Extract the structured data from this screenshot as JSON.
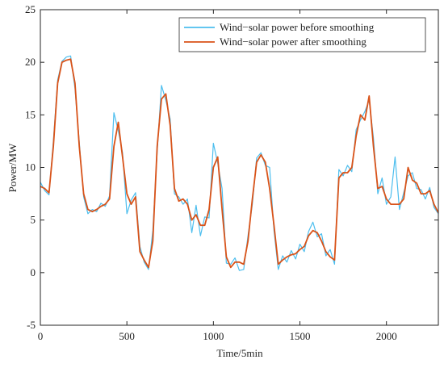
{
  "chart_data": {
    "type": "line",
    "xlabel": "Time/5min",
    "ylabel": "Power/MW",
    "x": [
      0,
      25,
      50,
      75,
      100,
      125,
      150,
      175,
      200,
      225,
      250,
      275,
      300,
      325,
      350,
      375,
      400,
      425,
      450,
      475,
      500,
      525,
      550,
      575,
      600,
      625,
      650,
      675,
      700,
      725,
      750,
      775,
      800,
      825,
      850,
      875,
      900,
      925,
      950,
      975,
      1000,
      1025,
      1050,
      1075,
      1100,
      1125,
      1150,
      1175,
      1200,
      1225,
      1250,
      1275,
      1300,
      1325,
      1350,
      1375,
      1400,
      1425,
      1450,
      1475,
      1500,
      1525,
      1550,
      1575,
      1600,
      1625,
      1650,
      1675,
      1700,
      1725,
      1750,
      1775,
      1800,
      1825,
      1850,
      1875,
      1900,
      1925,
      1950,
      1975,
      2000,
      2025,
      2050,
      2075,
      2100,
      2125,
      2150,
      2175,
      2200,
      2225,
      2250,
      2275,
      2300
    ],
    "series": [
      {
        "name": "Wind−solar power before smoothing",
        "color": "#4dbeee",
        "values": [
          8.6,
          7.8,
          7.4,
          12.5,
          18.3,
          20.1,
          20.5,
          20.6,
          17.5,
          12.4,
          7.2,
          5.6,
          6.0,
          5.8,
          6.6,
          6.3,
          7.3,
          15.2,
          13.5,
          11.4,
          5.6,
          6.9,
          7.6,
          2.5,
          1.0,
          0.3,
          4.0,
          11.5,
          17.8,
          16.4,
          14.6,
          7.5,
          7.2,
          6.5,
          7.0,
          3.8,
          6.4,
          3.5,
          5.3,
          5.2,
          12.3,
          10.4,
          8.0,
          0.9,
          0.8,
          1.4,
          0.2,
          0.3,
          3.5,
          6.5,
          10.9,
          11.4,
          10.2,
          10.0,
          4.0,
          0.3,
          1.6,
          1.0,
          2.1,
          1.3,
          2.7,
          2.0,
          3.9,
          4.8,
          3.4,
          3.7,
          1.6,
          2.2,
          0.8,
          9.8,
          9.2,
          10.2,
          9.6,
          13.6,
          14.5,
          15.3,
          16.4,
          12.8,
          7.5,
          9.0,
          6.5,
          7.2,
          11.0,
          6.0,
          7.6,
          9.2,
          9.5,
          8.0,
          7.9,
          7.0,
          8.1,
          6.2,
          5.6
        ]
      },
      {
        "name": "Wind−solar power after smoothing",
        "color": "#d95319",
        "values": [
          8.2,
          8.0,
          7.6,
          12.0,
          18.0,
          20.0,
          20.2,
          20.3,
          18.0,
          12.0,
          7.5,
          6.0,
          5.8,
          6.0,
          6.3,
          6.5,
          7.0,
          12.0,
          14.3,
          11.0,
          7.5,
          6.5,
          7.2,
          2.0,
          1.2,
          0.5,
          3.0,
          12.0,
          16.5,
          17.0,
          14.0,
          8.0,
          6.8,
          7.0,
          6.5,
          5.0,
          5.5,
          4.5,
          4.5,
          6.0,
          10.0,
          11.0,
          6.0,
          1.5,
          0.5,
          1.0,
          1.0,
          0.8,
          3.0,
          7.0,
          10.5,
          11.2,
          10.5,
          8.0,
          4.5,
          0.8,
          1.2,
          1.5,
          1.7,
          1.8,
          2.2,
          2.5,
          3.5,
          4.0,
          3.8,
          3.0,
          2.0,
          1.5,
          1.2,
          9.0,
          9.5,
          9.5,
          10.0,
          13.0,
          15.0,
          14.5,
          16.8,
          12.0,
          8.0,
          8.2,
          7.0,
          6.5,
          6.5,
          6.5,
          7.0,
          10.0,
          8.8,
          8.5,
          7.5,
          7.5,
          7.8,
          6.5,
          5.7
        ]
      }
    ],
    "xlim": [
      0,
      2300
    ],
    "ylim": [
      -5,
      25
    ],
    "xticks": [
      0,
      500,
      1000,
      1500,
      2000
    ],
    "yticks": [
      -5,
      0,
      5,
      10,
      15,
      20,
      25
    ],
    "legend": "northeast"
  }
}
